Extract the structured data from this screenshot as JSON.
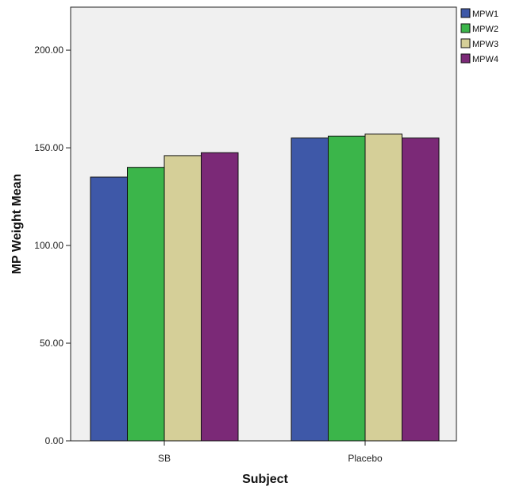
{
  "chart_data": {
    "type": "bar",
    "xlabel": "Subject",
    "ylabel": "MP Weight Mean",
    "categories": [
      "SB",
      "Placebo"
    ],
    "series": [
      {
        "name": "MPW1",
        "color": "#3e58a8",
        "values": [
          135.0,
          155.0
        ]
      },
      {
        "name": "MPW2",
        "color": "#3bb54a",
        "values": [
          140.0,
          156.0
        ]
      },
      {
        "name": "MPW3",
        "color": "#d5cf98",
        "values": [
          146.0,
          157.0
        ]
      },
      {
        "name": "MPW4",
        "color": "#7b2977",
        "values": [
          147.5,
          155.0
        ]
      }
    ],
    "ylim": [
      0,
      222
    ],
    "yticks": [
      "0.00",
      "50.00",
      "100.00",
      "150.00",
      "200.00"
    ],
    "ytick_values": [
      0,
      50,
      100,
      150,
      200
    ],
    "legend_position": "top-right",
    "grid": false,
    "plot_background": "#f0f0f0"
  }
}
